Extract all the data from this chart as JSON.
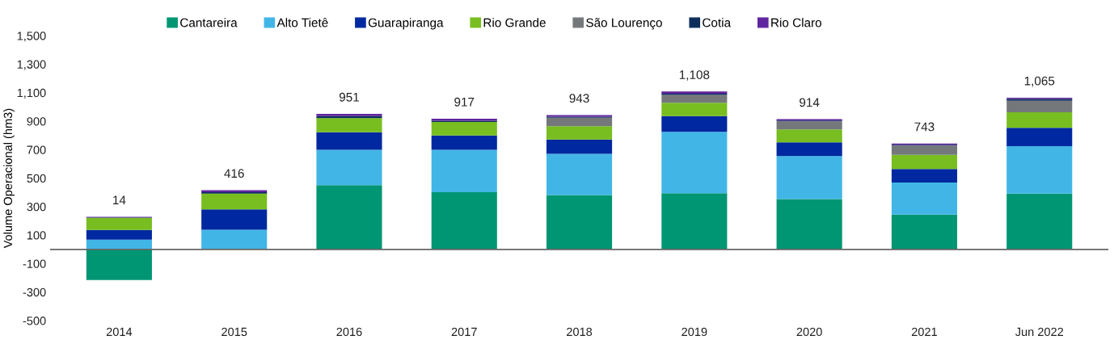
{
  "chart_data": {
    "type": "bar",
    "stacked": true,
    "ylabel": "Volume Operacional (hm3)",
    "categories": [
      "2014",
      "2015",
      "2016",
      "2017",
      "2018",
      "2019",
      "2020",
      "2021",
      "Jun 2022"
    ],
    "series": [
      {
        "name": "Cantareira",
        "color": "#009673",
        "values": [
          -215,
          0,
          451,
          402,
          381,
          394,
          353,
          244,
          391
        ]
      },
      {
        "name": "Alto Tietê",
        "color": "#41b6e6",
        "values": [
          68,
          138,
          248,
          297,
          289,
          431,
          302,
          226,
          334
        ]
      },
      {
        "name": "Guarapiranga",
        "color": "#0028a0",
        "values": [
          68,
          143,
          123,
          100,
          101,
          110,
          96,
          94,
          128
        ]
      },
      {
        "name": "Rio Grande",
        "color": "#78be20",
        "values": [
          85,
          110,
          99,
          96,
          94,
          94,
          91,
          99,
          110
        ]
      },
      {
        "name": "São Lourenço",
        "color": "#75787b",
        "values": [
          0,
          0,
          0,
          0,
          59,
          55,
          57,
          66,
          81
        ]
      },
      {
        "name": "Cotia",
        "color": "#0c2d5a",
        "values": [
          3,
          10,
          14,
          8,
          8,
          9,
          6,
          5,
          12
        ]
      },
      {
        "name": "Rio Claro",
        "color": "#5f259f",
        "values": [
          5,
          15,
          16,
          14,
          11,
          15,
          9,
          9,
          9
        ]
      }
    ],
    "totals": [
      "14",
      "416",
      "951",
      "917",
      "943",
      "1,108",
      "914",
      "743",
      "1,065"
    ],
    "ylim": [
      -500,
      1500
    ],
    "yticks": [
      {
        "value": -500,
        "label": "-500"
      },
      {
        "value": -300,
        "label": "-300"
      },
      {
        "value": -100,
        "label": "-100"
      },
      100,
      300,
      500,
      700,
      900,
      {
        "value": 1100,
        "label": "1,100"
      },
      {
        "value": 1300,
        "label": "1,300"
      },
      {
        "value": 1500,
        "label": "1,500"
      }
    ],
    "grid": false,
    "legend": "top"
  }
}
